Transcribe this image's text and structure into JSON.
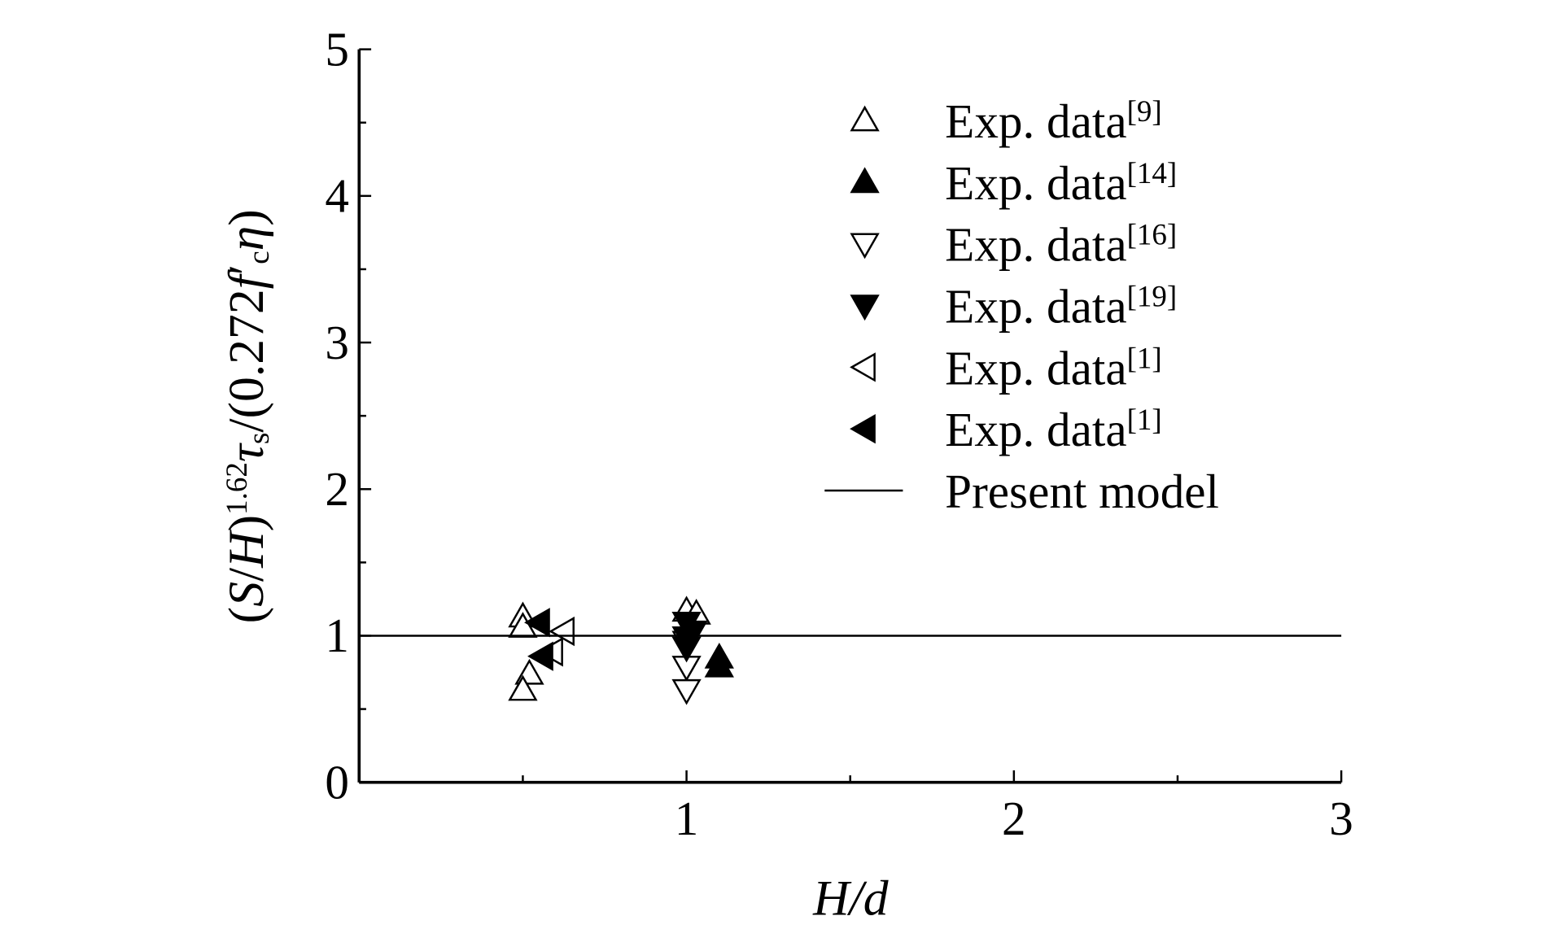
{
  "chart_data": {
    "type": "scatter",
    "xlabel": "H/d",
    "ylabel_parts": [
      "(",
      "S",
      "/",
      "H",
      ")",
      "1.62",
      "τ",
      "s",
      "/(0.272",
      "f",
      "′",
      "c",
      "η",
      ")"
    ],
    "xlim": [
      0,
      3
    ],
    "xticks": [
      1,
      2,
      3
    ],
    "xminorticks": [
      0.5,
      1.5,
      2.5
    ],
    "ylim": [
      0,
      5
    ],
    "yticks": [
      0,
      1,
      2,
      3,
      4,
      5
    ],
    "yminorticks": [
      0.5,
      1.5,
      2.5,
      3.5,
      4.5
    ],
    "legend": "upper right",
    "series": [
      {
        "name": "Exp. data",
        "ref": "[9]",
        "marker": "up",
        "filled": false,
        "color": "#000000",
        "x": [
          0.5,
          0.5,
          0.52,
          0.5,
          1.0,
          1.03
        ],
        "values": [
          1.13,
          1.06,
          0.74,
          0.63,
          1.17,
          1.15
        ]
      },
      {
        "name": "Exp. data",
        "ref": "[14]",
        "marker": "up",
        "filled": true,
        "color": "#000000",
        "x": [
          1.1,
          1.1
        ],
        "values": [
          0.85,
          0.79
        ]
      },
      {
        "name": "Exp. data",
        "ref": "[16]",
        "marker": "down",
        "filled": false,
        "color": "#000000",
        "x": [
          1.0,
          1.0,
          1.0
        ],
        "values": [
          0.79,
          0.63,
          0.96
        ]
      },
      {
        "name": "Exp. data",
        "ref": "[19]",
        "marker": "down",
        "filled": true,
        "color": "#000000",
        "x": [
          1.0,
          1.0,
          1.0,
          1.02
        ],
        "values": [
          1.09,
          0.99,
          0.92,
          1.03
        ]
      },
      {
        "name": "Exp. data",
        "ref": "[1]",
        "marker": "left",
        "filled": false,
        "color": "#000000",
        "x": [
          0.625,
          0.59
        ],
        "values": [
          1.03,
          0.89
        ]
      },
      {
        "name": "Exp. data",
        "ref": "[1]",
        "marker": "left",
        "filled": true,
        "color": "#000000",
        "x": [
          0.55,
          0.56
        ],
        "values": [
          1.09,
          0.86
        ]
      },
      {
        "name": "Present model",
        "marker": "line",
        "color": "#000000",
        "x": [
          0,
          3
        ],
        "values": [
          1,
          1
        ]
      }
    ]
  }
}
